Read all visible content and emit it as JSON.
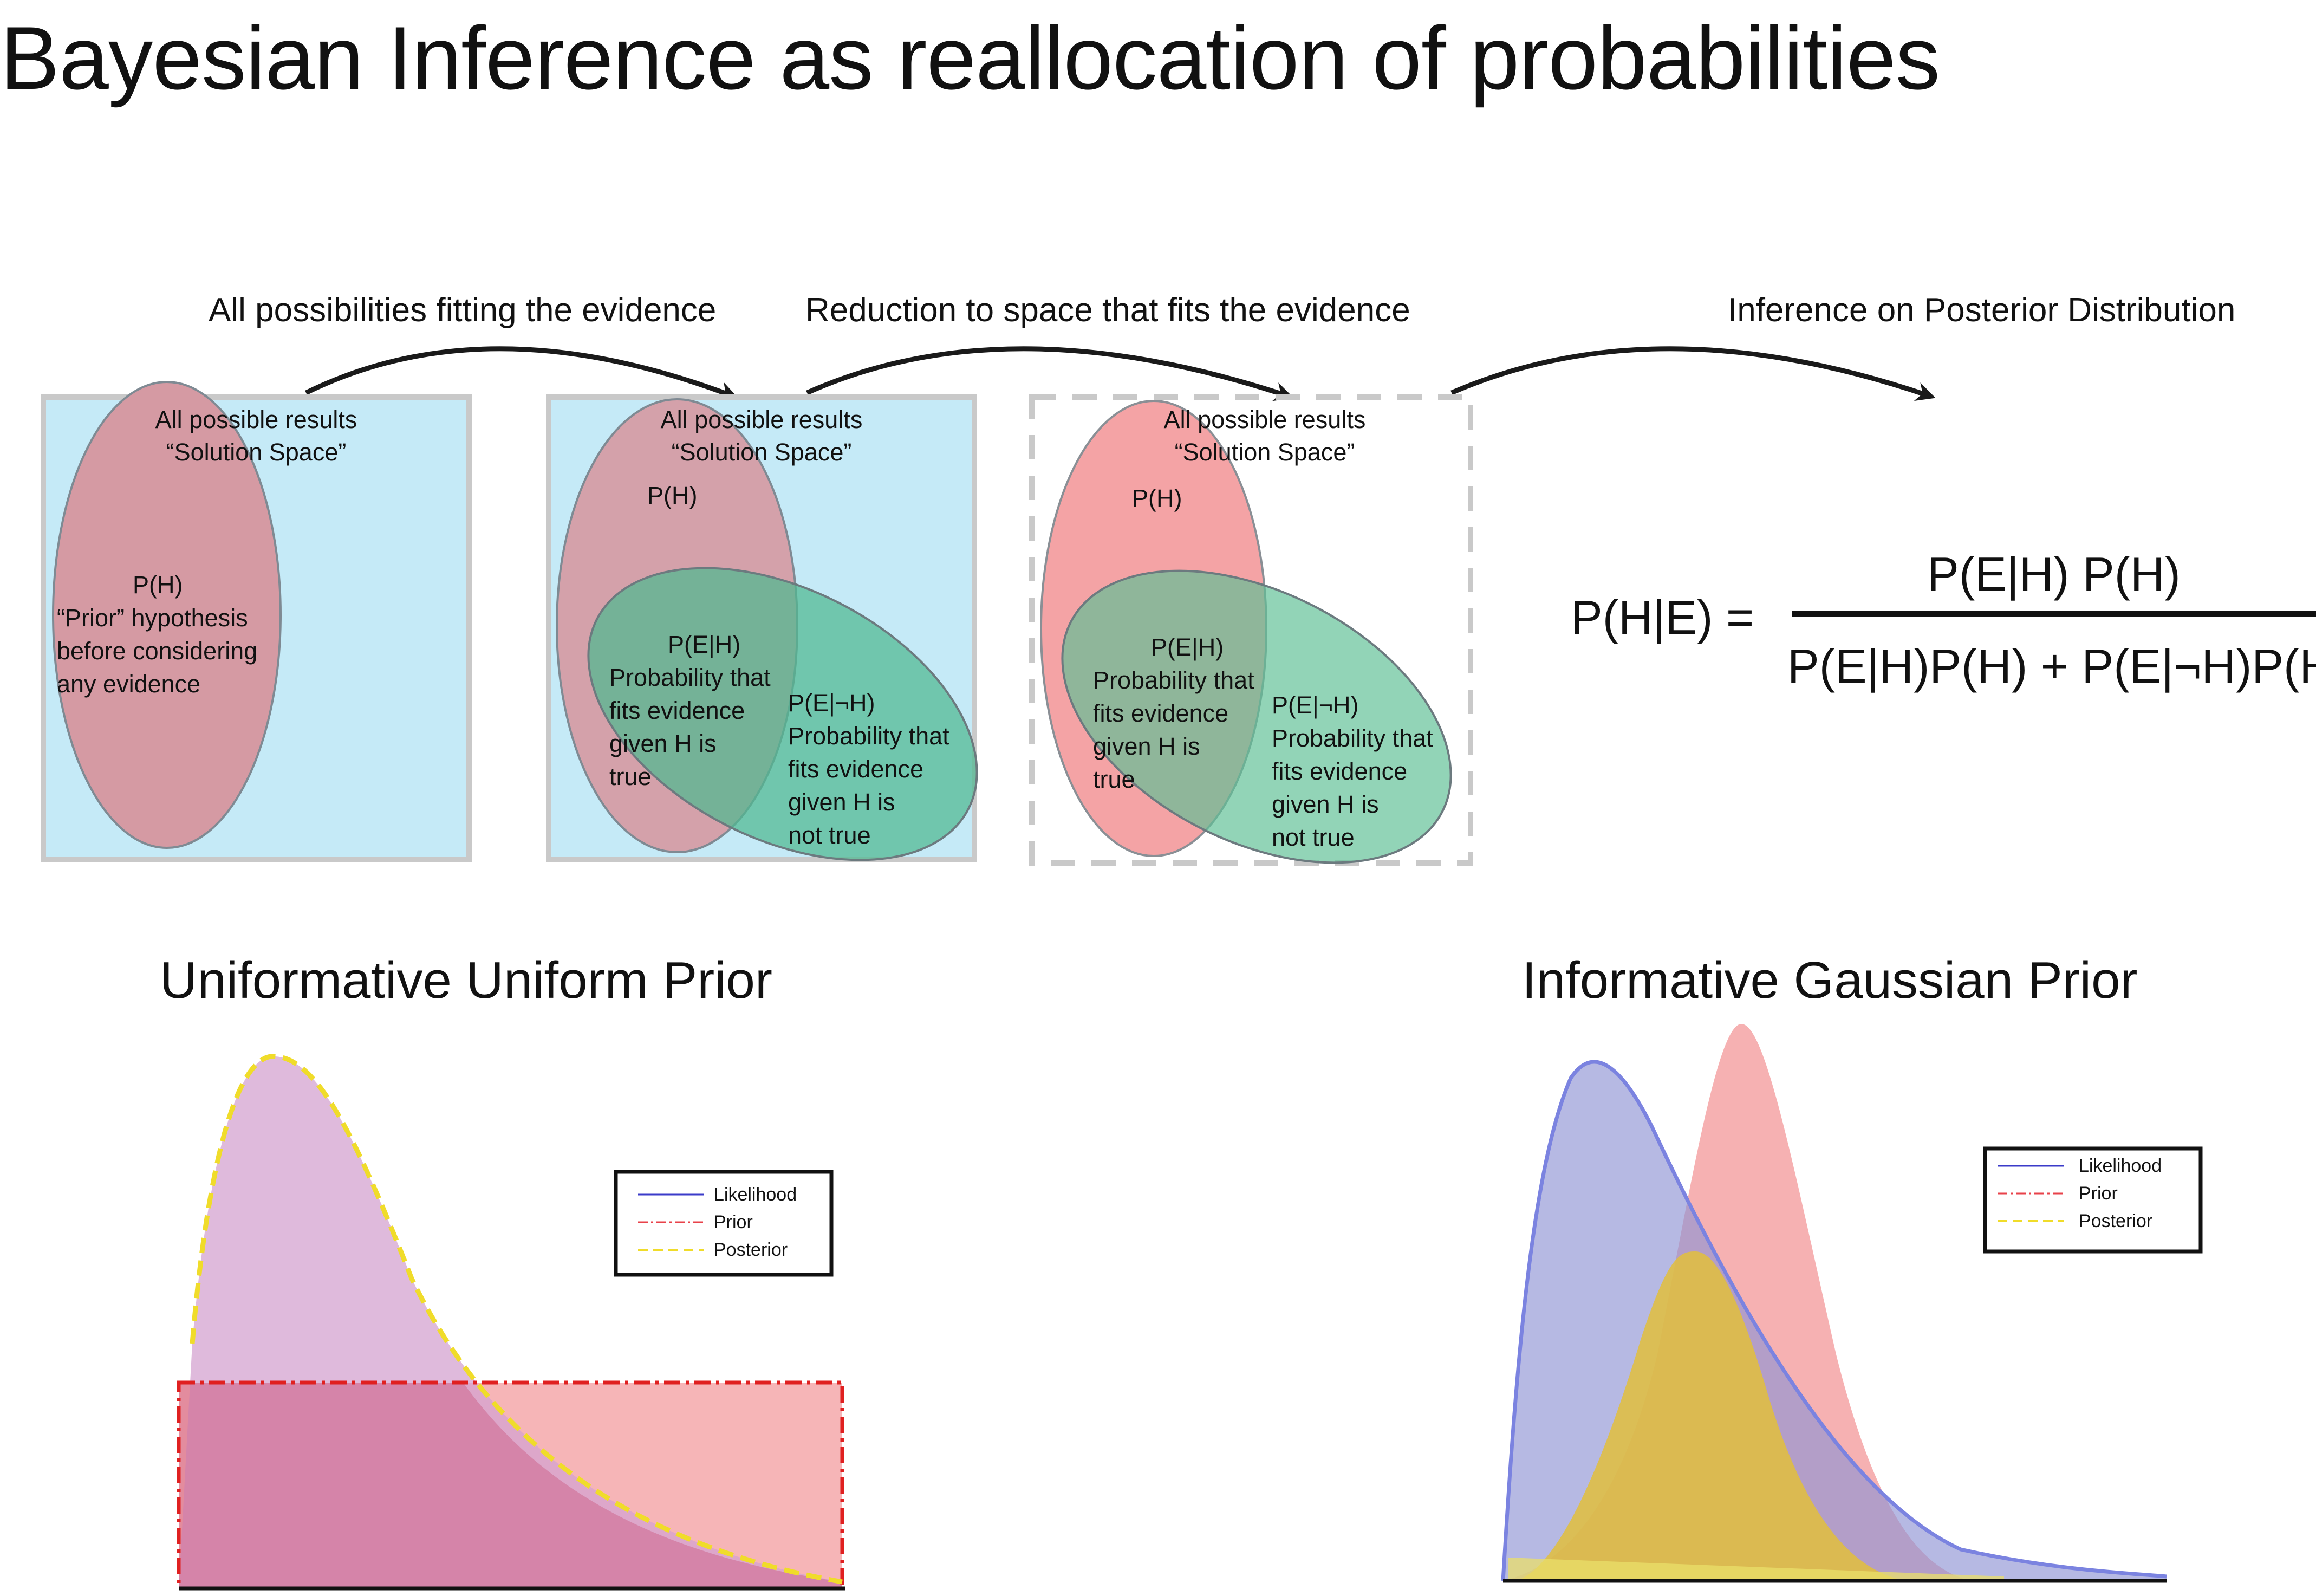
{
  "title": "Bayesian Inference as reallocation of probabilities",
  "steps": [
    {
      "label": "All possibilities fitting the evidence"
    },
    {
      "label": "Reduction to space that fits the evidence"
    },
    {
      "label": "Inference on Posterior Distribution"
    }
  ],
  "panels": [
    {
      "header_line1": "All possible results",
      "header_line2": "“Solution Space”",
      "prior_label": "P(H)",
      "prior_text": [
        "“Prior” hypothesis",
        "before considering",
        "any evidence"
      ]
    },
    {
      "header_line1": "All possible results",
      "header_line2": "“Solution Space”",
      "prior_label": "P(H)",
      "eh_label": "P(E|H)",
      "eh_text": [
        "Probability that",
        "fits evidence",
        "given H is",
        "true"
      ],
      "enh_label": "P(E|¬H)",
      "enh_text": [
        "Probability that",
        "fits evidence",
        "given H is",
        "not true"
      ]
    },
    {
      "header_line1": "All possible results",
      "header_line2": "“Solution Space”",
      "prior_label": "P(H)",
      "eh_label": "P(E|H)",
      "eh_text": [
        "Probability that",
        "fits evidence",
        "given H is",
        "true"
      ],
      "enh_label": "P(E|¬H)",
      "enh_text": [
        "Probability that",
        "fits evidence",
        "given H is",
        "not true"
      ]
    }
  ],
  "formula": {
    "lhs": "P(H|E) =",
    "numerator": "P(E|H) P(H)",
    "denominator": "P(E|H)P(H) + P(E|¬H)P(H)"
  },
  "plots": [
    {
      "title": "Uniformative Uniform Prior",
      "legend": [
        "Likelihood",
        "Prior",
        "Posterior"
      ]
    },
    {
      "title": "Informative Gaussian Prior",
      "legend": [
        "Likelihood",
        "Prior",
        "Posterior"
      ]
    }
  ],
  "colors": {
    "solution_space": "#c5eaf7",
    "frame": "#c9c9c9",
    "prior_muted": "#d59aa3",
    "prior_bright": "#f4a3a5",
    "evidence_green": "#5fbf95",
    "likelihood": "#7b83e0",
    "prior_curve": "#e8424a",
    "posterior": "#f0dc2a"
  }
}
